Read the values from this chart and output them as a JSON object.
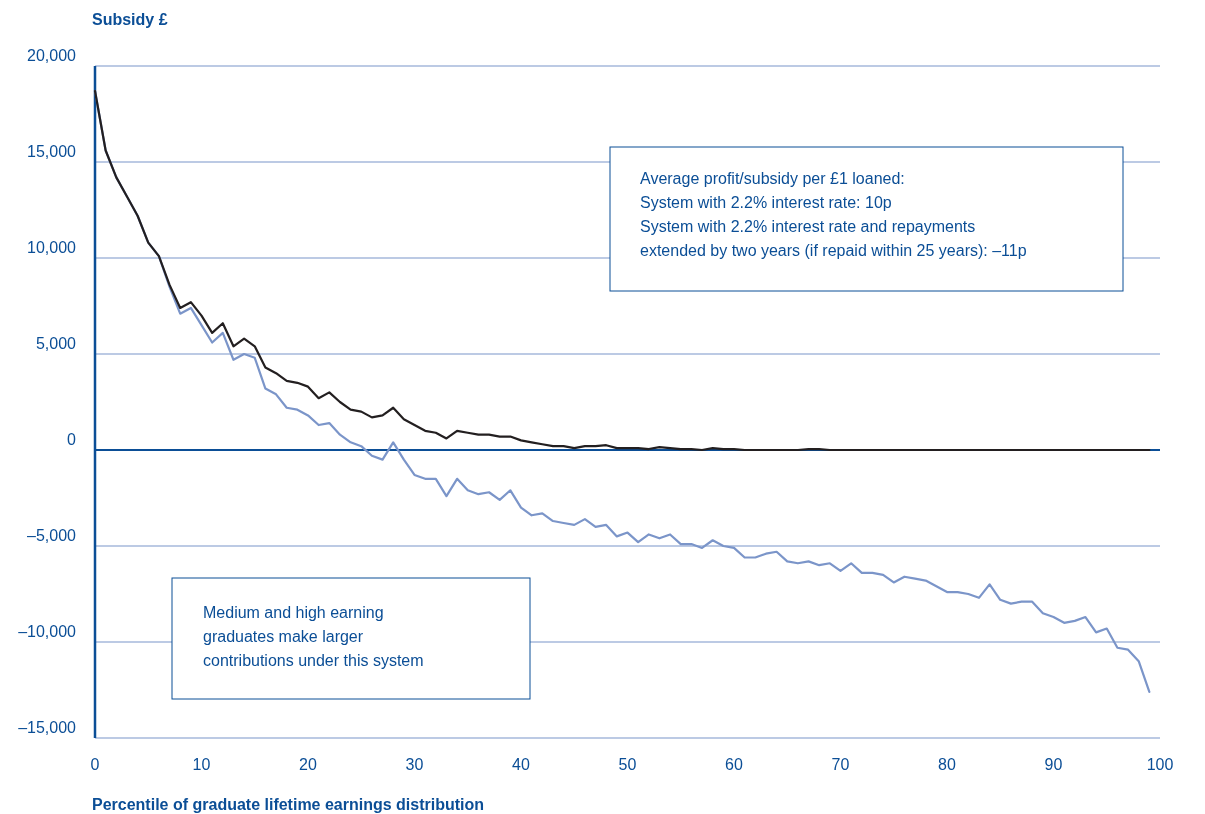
{
  "chart_data": {
    "type": "line",
    "ylabel": "Subsidy £",
    "xlabel": "Percentile of graduate lifetime earnings distribution",
    "xlim": [
      0,
      100
    ],
    "xticks": [
      0,
      10,
      20,
      30,
      40,
      50,
      60,
      70,
      80,
      90,
      100
    ],
    "ylim": [
      -15000,
      20000
    ],
    "yticks": [
      {
        "value": -15000,
        "label": "–15,000"
      },
      {
        "value": -10000,
        "label": "–10,000"
      },
      {
        "value": -5000,
        "label": "–5,000"
      },
      0,
      {
        "value": 5000,
        "label": "5,000"
      },
      {
        "value": 10000,
        "label": "10,000"
      },
      {
        "value": 15000,
        "label": "15,000"
      },
      {
        "value": 20000,
        "label": "20,000"
      }
    ],
    "grid": "y",
    "line_style": "solid",
    "marker": "none",
    "ref_lines": [
      {
        "axis": "y",
        "value": 0,
        "color": "#0b4e96"
      }
    ],
    "x": [
      0,
      1,
      2,
      3,
      4,
      5,
      6,
      7,
      8,
      9,
      10,
      11,
      12,
      13,
      14,
      15,
      16,
      17,
      18,
      19,
      20,
      21,
      22,
      23,
      24,
      25,
      26,
      27,
      28,
      29,
      30,
      31,
      32,
      33,
      34,
      35,
      36,
      37,
      38,
      39,
      40,
      41,
      42,
      43,
      44,
      45,
      46,
      47,
      48,
      49,
      50,
      51,
      52,
      53,
      54,
      55,
      56,
      57,
      58,
      59,
      60,
      61,
      62,
      63,
      64,
      65,
      66,
      67,
      68,
      69,
      70,
      71,
      72,
      73,
      74,
      75,
      76,
      77,
      78,
      79,
      80,
      81,
      82,
      83,
      84,
      85,
      86,
      87,
      88,
      89,
      90,
      91,
      92,
      93,
      94,
      95,
      96,
      97,
      98,
      99
    ],
    "series": [
      {
        "color": "#7b95c9",
        "values": [
          18700,
          15600,
          14200,
          13200,
          12200,
          10800,
          10100,
          8500,
          7100,
          7400,
          6500,
          5600,
          6100,
          4700,
          5000,
          4800,
          3200,
          2900,
          2200,
          2100,
          1800,
          1300,
          1400,
          800,
          400,
          200,
          -300,
          -500,
          400,
          -500,
          -1300,
          -1500,
          -1500,
          -2400,
          -1500,
          -2100,
          -2300,
          -2200,
          -2600,
          -2100,
          -3000,
          -3400,
          -3300,
          -3700,
          -3800,
          -3900,
          -3600,
          -4000,
          -3900,
          -4500,
          -4300,
          -4800,
          -4400,
          -4600,
          -4400,
          -4900,
          -4900,
          -5100,
          -4700,
          -5000,
          -5100,
          -5600,
          -5600,
          -5400,
          -5300,
          -5800,
          -5900,
          -5800,
          -6000,
          -5900,
          -6300,
          -5900,
          -6400,
          -6400,
          -6500,
          -6900,
          -6600,
          -6700,
          -6800,
          -7100,
          -7400,
          -7400,
          -7500,
          -7700,
          -7000,
          -7800,
          -8000,
          -7900,
          -7900,
          -8500,
          -8700,
          -9000,
          -8900,
          -8700,
          -9500,
          -9300,
          -10300,
          -10400,
          -11000,
          -12600
        ]
      },
      {
        "color": "#231f20",
        "values": [
          18700,
          15600,
          14200,
          13200,
          12200,
          10800,
          10100,
          8600,
          7400,
          7700,
          7000,
          6100,
          6600,
          5400,
          5800,
          5400,
          4300,
          4000,
          3600,
          3500,
          3300,
          2700,
          3000,
          2500,
          2100,
          2000,
          1700,
          1800,
          2200,
          1600,
          1300,
          1000,
          900,
          600,
          1000,
          900,
          800,
          800,
          700,
          700,
          500,
          400,
          300,
          200,
          200,
          100,
          200,
          200,
          250,
          100,
          100,
          100,
          50,
          150,
          100,
          50,
          50,
          0,
          100,
          50,
          50,
          0,
          0,
          0,
          0,
          0,
          0,
          50,
          50,
          0,
          0,
          0,
          0,
          0,
          0,
          0,
          0,
          0,
          0,
          0,
          0,
          0,
          0,
          0,
          0,
          0,
          0,
          0,
          0,
          0,
          0,
          0,
          0,
          0,
          0,
          0,
          0,
          0,
          0,
          0
        ]
      }
    ],
    "annotations": [
      "Average profit/subsidy per £1 loaned:\nSystem with 2.2% interest rate: 10p\nSystem with 2.2% interest rate and repayments\nextended by two years (if repaid within 25 years): –11p",
      "Medium and high earning\ngraduates make larger\ncontributions under this system"
    ]
  }
}
